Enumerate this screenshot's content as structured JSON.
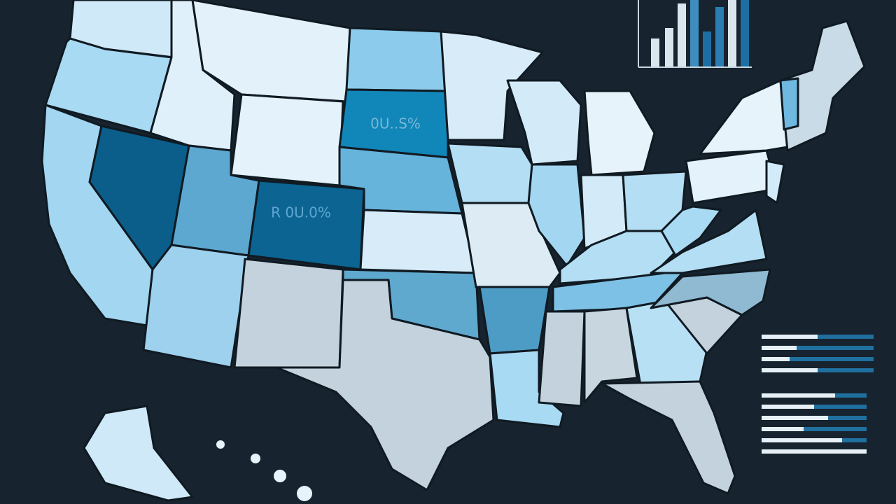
{
  "map": {
    "state_labels": [
      {
        "state": "South Dakota",
        "text": "0U..S%"
      },
      {
        "state": "Colorado",
        "text": "R 0U.0%"
      }
    ]
  }
}
